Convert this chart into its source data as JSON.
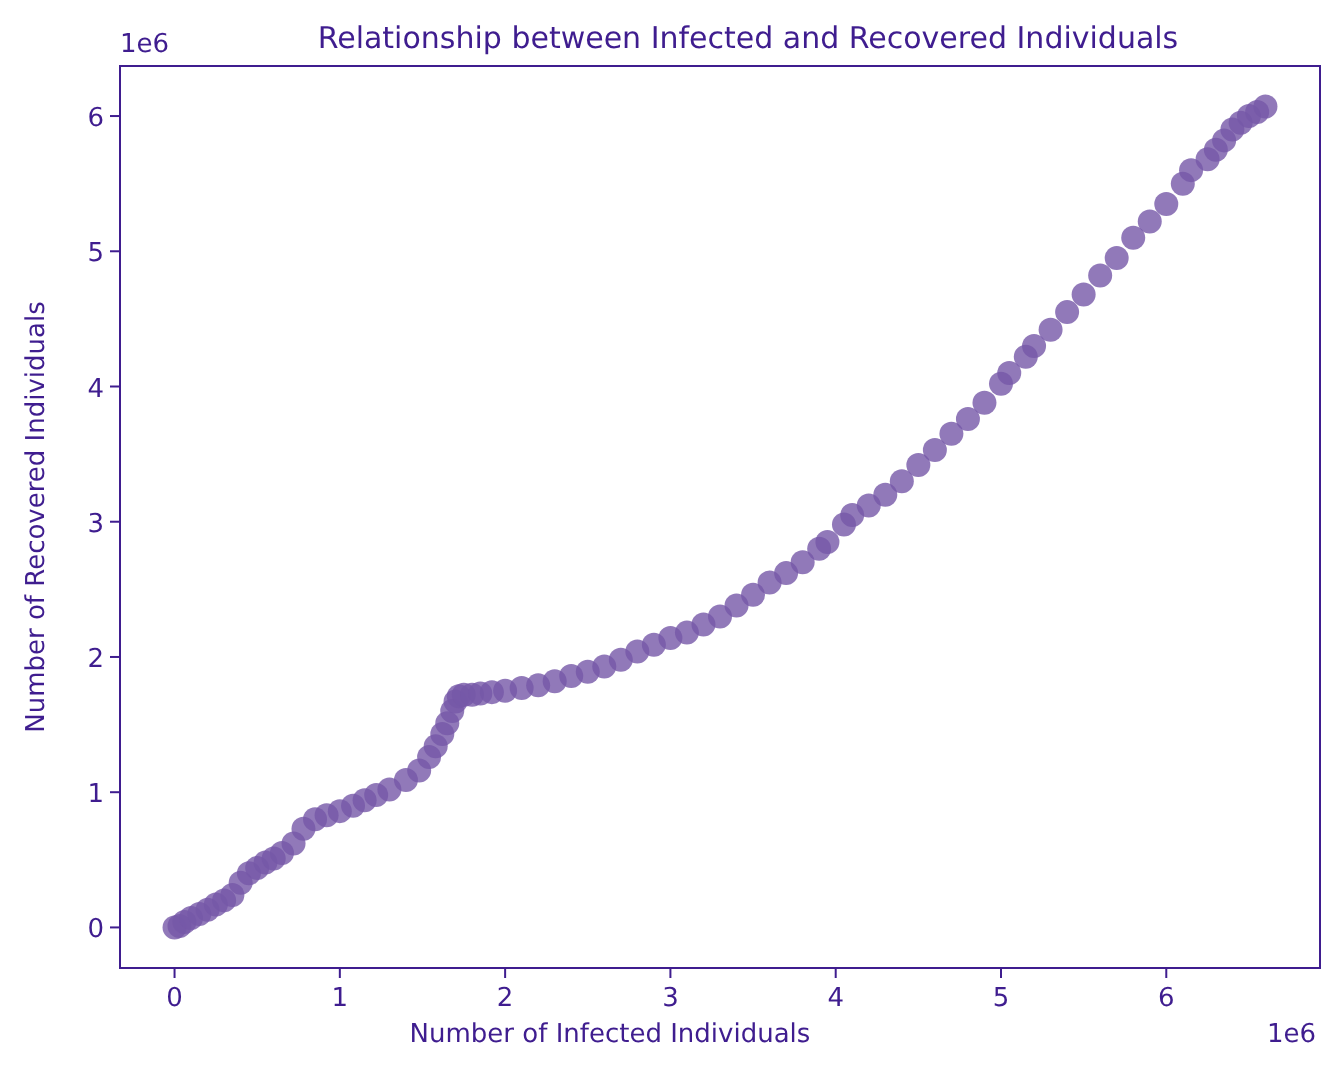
{
  "chart_data": {
    "type": "scatter",
    "title": "Relationship between Infected and Recovered Individuals",
    "xlabel": "Number of Infected Individuals",
    "ylabel": "Number of Recovered Individuals",
    "annotations": [
      "1e6",
      "1e6"
    ],
    "x": [
      0,
      0.03,
      0.06,
      0.1,
      0.15,
      0.2,
      0.25,
      0.3,
      0.35,
      0.4,
      0.45,
      0.5,
      0.55,
      0.6,
      0.65,
      0.72,
      0.78,
      0.85,
      0.92,
      1.0,
      1.08,
      1.15,
      1.22,
      1.3,
      1.4,
      1.48,
      1.54,
      1.58,
      1.62,
      1.65,
      1.68,
      1.7,
      1.72,
      1.75,
      1.8,
      1.85,
      1.92,
      2.0,
      2.1,
      2.2,
      2.3,
      2.4,
      2.5,
      2.6,
      2.7,
      2.8,
      2.9,
      3.0,
      3.1,
      3.2,
      3.3,
      3.4,
      3.5,
      3.6,
      3.7,
      3.8,
      3.9,
      3.95,
      4.05,
      4.1,
      4.2,
      4.3,
      4.4,
      4.5,
      4.6,
      4.7,
      4.8,
      4.9,
      5.0,
      5.05,
      5.15,
      5.2,
      5.3,
      5.4,
      5.5,
      5.6,
      5.7,
      5.8,
      5.9,
      6.0,
      6.1,
      6.15,
      6.25,
      6.3,
      6.35,
      6.4,
      6.45,
      6.5,
      6.55,
      6.6
    ],
    "series": [
      {
        "color": "#7657a8",
        "values": [
          0,
          0.01,
          0.04,
          0.07,
          0.1,
          0.13,
          0.17,
          0.2,
          0.24,
          0.33,
          0.4,
          0.44,
          0.48,
          0.51,
          0.55,
          0.62,
          0.73,
          0.8,
          0.83,
          0.86,
          0.9,
          0.94,
          0.98,
          1.02,
          1.09,
          1.16,
          1.26,
          1.34,
          1.43,
          1.51,
          1.6,
          1.67,
          1.71,
          1.72,
          1.72,
          1.73,
          1.74,
          1.75,
          1.77,
          1.79,
          1.82,
          1.86,
          1.89,
          1.93,
          1.98,
          2.04,
          2.09,
          2.14,
          2.18,
          2.24,
          2.3,
          2.38,
          2.46,
          2.55,
          2.62,
          2.7,
          2.8,
          2.85,
          2.98,
          3.05,
          3.12,
          3.2,
          3.3,
          3.42,
          3.53,
          3.65,
          3.76,
          3.88,
          4.02,
          4.1,
          4.22,
          4.3,
          4.42,
          4.55,
          4.68,
          4.82,
          4.95,
          5.1,
          5.22,
          5.35,
          5.5,
          5.6,
          5.68,
          5.75,
          5.82,
          5.9,
          5.95,
          6.0,
          6.03,
          6.07
        ]
      }
    ],
    "xlim": [
      -0.33,
      6.93
    ],
    "ylim": [
      -0.3,
      6.37
    ],
    "xticks": [
      0,
      1,
      2,
      3,
      4,
      5,
      6
    ],
    "yticks": [
      0,
      1,
      2,
      3,
      4,
      5,
      6
    ],
    "marker": "circle"
  }
}
